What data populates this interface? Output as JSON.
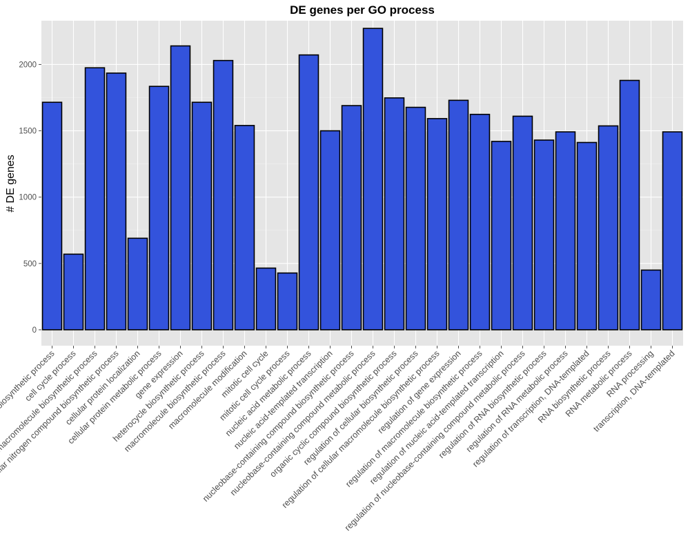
{
  "chart_data": {
    "type": "bar",
    "title": "DE genes per GO process",
    "xlabel": "",
    "ylabel": "# DE genes",
    "ylim": [
      -120,
      2330
    ],
    "yticks": [
      0,
      500,
      1000,
      1500,
      2000
    ],
    "categories": [
      "cellular macromolecule biosynthetic process",
      "cell cycle process",
      "cellular macromolecule biosynthetic process",
      "cellular nitrogen compound biosynthetic process",
      "cellular protein localization",
      "cellular protein metabolic process",
      "gene expression",
      "heterocycle biosynthetic process",
      "macromolecule biosynthetic process",
      "macromolecule modification",
      "mitotic cell cycle",
      "mitotic cell cycle process",
      "nucleic acid metabolic process",
      "nucleic acid-templated transcription",
      "nucleobase-containing compound biosynthetic process",
      "nucleobase-containing compound metabolic process",
      "organic cyclic compound biosynthetic process",
      "regulation of cellular biosynthetic process",
      "regulation of cellular macromolecule biosynthetic process",
      "regulation of gene expression",
      "regulation of macromolecule biosynthetic process",
      "regulation of nucleic acid-templated transcription",
      "regulation of nucleobase-containing compound metabolic process",
      "regulation of RNA biosynthetic process",
      "regulation of RNA metabolic process",
      "regulation of transcription, DNA-templated",
      "RNA biosynthetic process",
      "RNA metabolic process",
      "RNA processing",
      "transcription, DNA-templated"
    ],
    "values": [
      1715,
      570,
      1975,
      1935,
      690,
      1835,
      2140,
      1715,
      2030,
      1540,
      465,
      428,
      2072,
      1500,
      1690,
      2272,
      1748,
      1677,
      1592,
      1730,
      1624,
      1420,
      1610,
      1430,
      1492,
      1412,
      1537,
      1880,
      450,
      1492
    ]
  }
}
